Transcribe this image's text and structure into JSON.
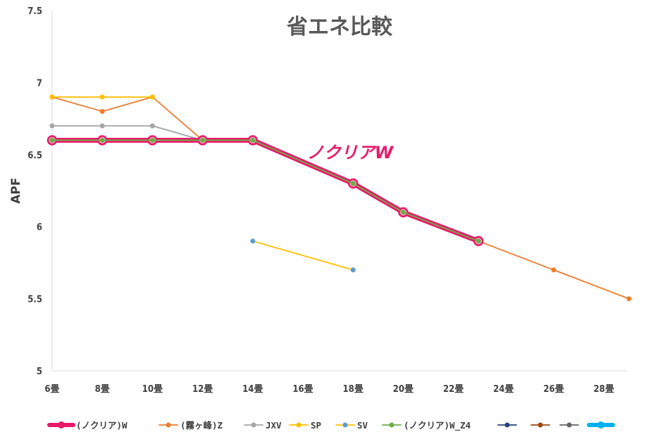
{
  "chart_data": {
    "type": "line",
    "title": "省エネ比較",
    "ylabel": "APF",
    "xlabel": "",
    "categories": [
      "6畳",
      "8畳",
      "10畳",
      "12畳",
      "14畳",
      "16畳",
      "18畳",
      "20畳",
      "22畳",
      "24畳",
      "26畳",
      "28畳"
    ],
    "y_ticks": [
      "5",
      "5.5",
      "6",
      "6.5",
      "7",
      "7.5"
    ],
    "ylim": [
      5,
      7.5
    ],
    "grid": false,
    "legend_position": "bottom",
    "annotation": "ノクリアW",
    "series": [
      {
        "name": "(ノクリア)W",
        "color": "#e8196a",
        "style": "thick",
        "points": [
          [
            0,
            6.6
          ],
          [
            1,
            6.6
          ],
          [
            2,
            6.6
          ],
          [
            3,
            6.6
          ],
          [
            4,
            6.6
          ],
          [
            6,
            6.3
          ],
          [
            7,
            6.1
          ],
          [
            8.5,
            5.9
          ]
        ]
      },
      {
        "name": "(霧ヶ峰)Z",
        "color": "#ed7d31",
        "style": "thin",
        "points": [
          [
            0,
            6.9
          ],
          [
            1,
            6.8
          ],
          [
            2,
            6.9
          ],
          [
            3,
            6.6
          ],
          [
            4,
            6.6
          ],
          [
            6,
            6.3
          ],
          [
            7,
            6.1
          ],
          [
            8.5,
            5.9
          ],
          [
            10,
            5.7
          ],
          [
            11.5,
            5.5
          ]
        ]
      },
      {
        "name": "JXV",
        "color": "#a5a5a5",
        "style": "thin",
        "points": [
          [
            0,
            6.7
          ],
          [
            1,
            6.7
          ],
          [
            2,
            6.7
          ],
          [
            3,
            6.6
          ],
          [
            4,
            6.6
          ]
        ]
      },
      {
        "name": "SP",
        "color": "#ffc000",
        "style": "thin",
        "points": [
          [
            0,
            6.9
          ],
          [
            1,
            6.9
          ],
          [
            2,
            6.9
          ]
        ]
      },
      {
        "name": "SV",
        "color": "#5b9bd5",
        "line_color": "#ffc000",
        "style": "thin",
        "points": [
          [
            4,
            5.9
          ],
          [
            6,
            5.7
          ]
        ]
      },
      {
        "name": "(ノクリア)W_Z4",
        "color": "#70ad47",
        "style": "thin",
        "points": [
          [
            0,
            6.6
          ],
          [
            1,
            6.6
          ],
          [
            2,
            6.6
          ],
          [
            3,
            6.6
          ],
          [
            4,
            6.6
          ],
          [
            6,
            6.3
          ],
          [
            7,
            6.1
          ],
          [
            8.5,
            5.9
          ]
        ]
      },
      {
        "name": "",
        "color": "#264478",
        "style": "legend-only",
        "points": []
      },
      {
        "name": "",
        "color": "#9e480e",
        "style": "legend-only",
        "points": []
      },
      {
        "name": "",
        "color": "#636363",
        "style": "legend-only",
        "points": []
      },
      {
        "name": "",
        "color": "#00b0f0",
        "style": "legend-only-thick",
        "points": []
      }
    ],
    "extra_segments": [
      {
        "color": "#4472c4",
        "points": [
          [
            0,
            6.9
          ],
          [
            2,
            6.9
          ]
        ]
      },
      {
        "color": "#00b0f0",
        "points": [
          [
            2,
            6.7
          ],
          [
            3,
            6.6
          ]
        ]
      }
    ]
  }
}
